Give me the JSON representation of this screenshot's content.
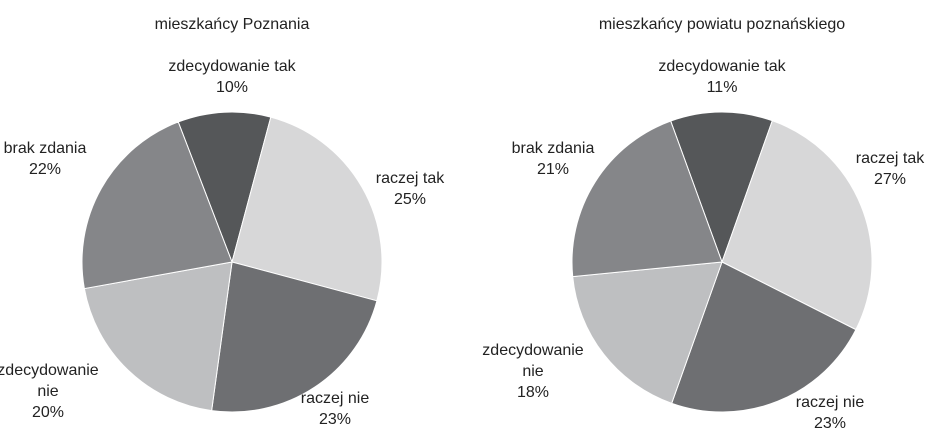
{
  "chart_data": [
    {
      "type": "pie",
      "title": "mieszkańcy Poznania",
      "categories": [
        "zdecydowanie tak",
        "raczej tak",
        "raczej nie",
        "zdecydowanie nie",
        "brak zdania"
      ],
      "values": [
        10,
        25,
        23,
        20,
        22
      ],
      "value_labels": [
        "10%",
        "25%",
        "23%",
        "20%",
        "22%"
      ],
      "colors": [
        "#555759",
        "#d7d7d8",
        "#6e6f72",
        "#bebfc1",
        "#858689"
      ]
    },
    {
      "type": "pie",
      "title": "mieszkańcy powiatu poznańskiego",
      "categories": [
        "zdecydowanie tak",
        "raczej tak",
        "raczej nie",
        "zdecydowanie nie",
        "brak zdania"
      ],
      "values": [
        11,
        27,
        23,
        18,
        21
      ],
      "value_labels": [
        "11%",
        "27%",
        "23%",
        "18%",
        "21%"
      ],
      "colors": [
        "#555759",
        "#d7d7d8",
        "#6e6f72",
        "#bebfc1",
        "#858689"
      ]
    }
  ]
}
